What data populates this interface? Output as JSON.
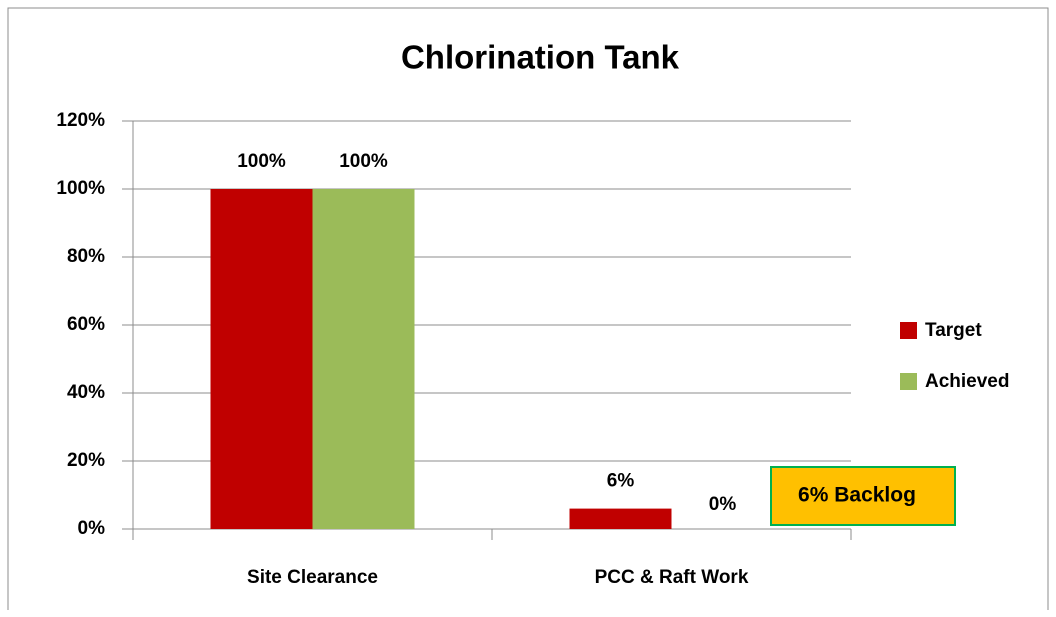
{
  "chart_data": {
    "type": "bar",
    "title": "Chlorination Tank",
    "categories": [
      "Site Clearance",
      "PCC & Raft Work"
    ],
    "series": [
      {
        "name": "Target",
        "color": "#c00000",
        "values": [
          100,
          6
        ],
        "value_labels": [
          "100%",
          "6%"
        ]
      },
      {
        "name": "Achieved",
        "color": "#9bbb59",
        "values": [
          100,
          0
        ],
        "value_labels": [
          "100%",
          "0%"
        ]
      }
    ],
    "ylim": [
      0,
      120
    ],
    "yticks": [
      {
        "value": 0,
        "label": "0%"
      },
      {
        "value": 20,
        "label": "20%"
      },
      {
        "value": 40,
        "label": "40%"
      },
      {
        "value": 60,
        "label": "60%"
      },
      {
        "value": 80,
        "label": "80%"
      },
      {
        "value": 100,
        "label": "100%"
      },
      {
        "value": 120,
        "label": "120%"
      }
    ],
    "grid": true,
    "legend": "right",
    "annotation": {
      "text": "6% Backlog",
      "fill": "#ffc000",
      "border": "#00b050"
    }
  }
}
